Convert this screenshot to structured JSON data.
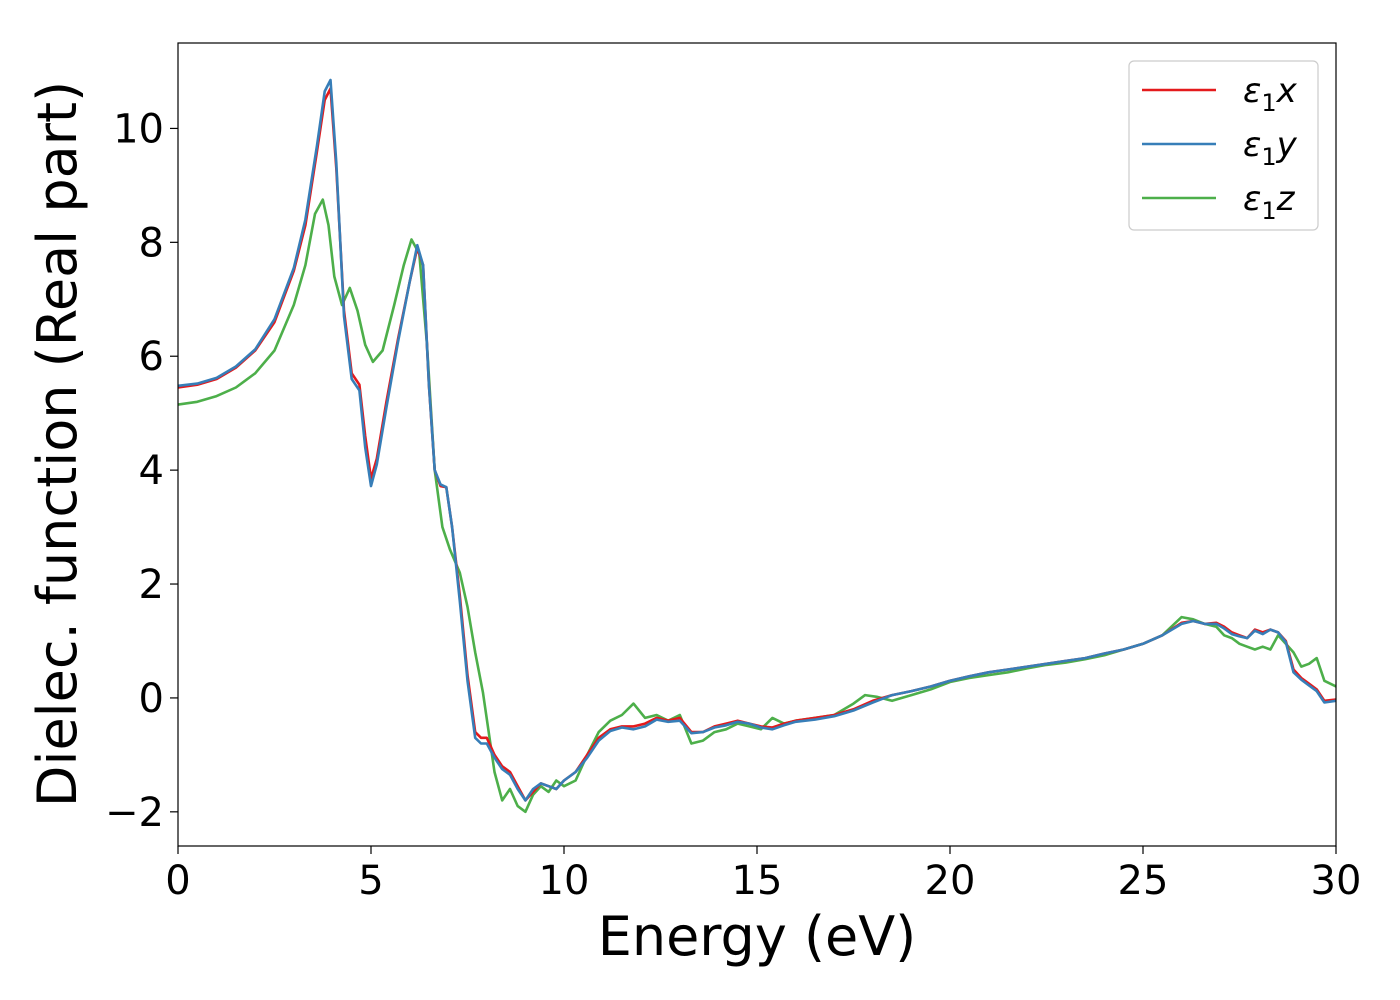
{
  "chart_data": {
    "type": "line",
    "title": "",
    "xlabel": "Energy (eV)",
    "ylabel": "Dielec. function (Real part)",
    "xlim": [
      0,
      30
    ],
    "ylim": [
      -2.6,
      11.5
    ],
    "xticks": [
      0,
      5,
      10,
      15,
      20,
      25,
      30
    ],
    "xtick_labels": [
      "0",
      "5",
      "10",
      "15",
      "20",
      "25",
      "30"
    ],
    "yticks": [
      -2,
      0,
      2,
      4,
      6,
      8,
      10
    ],
    "ytick_labels": [
      "−2",
      "0",
      "2",
      "4",
      "6",
      "8",
      "10"
    ],
    "grid": false,
    "legend_position": "top-right",
    "series": [
      {
        "name": "ε₁x",
        "name_base": "ε",
        "name_sub": "1",
        "name_suffix": "x",
        "color": "#e41a1c",
        "x": [
          0,
          0.5,
          1,
          1.5,
          2,
          2.5,
          3,
          3.3,
          3.6,
          3.8,
          3.95,
          4.1,
          4.3,
          4.5,
          4.7,
          4.85,
          5.0,
          5.15,
          5.4,
          5.7,
          6.0,
          6.2,
          6.35,
          6.5,
          6.65,
          6.8,
          6.95,
          7.1,
          7.3,
          7.5,
          7.7,
          7.85,
          8.0,
          8.2,
          8.4,
          8.6,
          8.8,
          9.0,
          9.2,
          9.4,
          9.6,
          9.8,
          10.0,
          10.3,
          10.6,
          10.9,
          11.2,
          11.5,
          11.8,
          12.1,
          12.4,
          12.7,
          13.0,
          13.3,
          13.6,
          13.9,
          14.2,
          14.5,
          14.8,
          15.1,
          15.4,
          15.7,
          16.0,
          16.5,
          17.0,
          17.5,
          18.0,
          18.5,
          19.0,
          19.5,
          20.0,
          20.5,
          21.0,
          21.5,
          22.0,
          22.5,
          23.0,
          23.5,
          24.0,
          24.5,
          25.0,
          25.5,
          26.0,
          26.3,
          26.6,
          26.9,
          27.1,
          27.3,
          27.5,
          27.7,
          27.9,
          28.1,
          28.3,
          28.5,
          28.7,
          28.9,
          29.1,
          29.3,
          29.5,
          29.7,
          30.0
        ],
        "y": [
          5.45,
          5.5,
          5.6,
          5.8,
          6.1,
          6.6,
          7.5,
          8.3,
          9.6,
          10.5,
          10.7,
          9.3,
          6.8,
          5.7,
          5.5,
          4.6,
          3.85,
          4.2,
          5.2,
          6.3,
          7.3,
          7.9,
          7.6,
          5.5,
          4.0,
          3.72,
          3.7,
          3.0,
          1.8,
          0.4,
          -0.6,
          -0.7,
          -0.7,
          -1.0,
          -1.2,
          -1.3,
          -1.55,
          -1.8,
          -1.65,
          -1.5,
          -1.55,
          -1.6,
          -1.45,
          -1.3,
          -1.0,
          -0.7,
          -0.55,
          -0.5,
          -0.5,
          -0.45,
          -0.35,
          -0.4,
          -0.35,
          -0.6,
          -0.6,
          -0.5,
          -0.45,
          -0.4,
          -0.45,
          -0.5,
          -0.52,
          -0.45,
          -0.4,
          -0.35,
          -0.3,
          -0.2,
          -0.05,
          0.05,
          0.12,
          0.2,
          0.3,
          0.38,
          0.45,
          0.5,
          0.55,
          0.6,
          0.65,
          0.7,
          0.78,
          0.85,
          0.95,
          1.1,
          1.32,
          1.35,
          1.3,
          1.32,
          1.25,
          1.15,
          1.1,
          1.05,
          1.2,
          1.15,
          1.2,
          1.15,
          1.0,
          0.5,
          0.35,
          0.25,
          0.15,
          -0.05,
          -0.03
        ]
      },
      {
        "name": "ε₁y",
        "name_base": "ε",
        "name_sub": "1",
        "name_suffix": "y",
        "color": "#377eb8",
        "x": [
          0,
          0.5,
          1,
          1.5,
          2,
          2.5,
          3,
          3.3,
          3.6,
          3.8,
          3.95,
          4.1,
          4.3,
          4.5,
          4.7,
          4.85,
          5.0,
          5.15,
          5.4,
          5.7,
          6.0,
          6.2,
          6.35,
          6.5,
          6.65,
          6.8,
          6.95,
          7.1,
          7.3,
          7.5,
          7.7,
          7.85,
          8.0,
          8.2,
          8.4,
          8.6,
          8.8,
          9.0,
          9.2,
          9.4,
          9.6,
          9.8,
          10.0,
          10.3,
          10.6,
          10.9,
          11.2,
          11.5,
          11.8,
          12.1,
          12.4,
          12.7,
          13.0,
          13.3,
          13.6,
          13.9,
          14.2,
          14.5,
          14.8,
          15.1,
          15.4,
          15.7,
          16.0,
          16.5,
          17.0,
          17.5,
          18.0,
          18.5,
          19.0,
          19.5,
          20.0,
          20.5,
          21.0,
          21.5,
          22.0,
          22.5,
          23.0,
          23.5,
          24.0,
          24.5,
          25.0,
          25.5,
          26.0,
          26.3,
          26.6,
          26.9,
          27.1,
          27.3,
          27.5,
          27.7,
          27.9,
          28.1,
          28.3,
          28.5,
          28.7,
          28.9,
          29.1,
          29.3,
          29.5,
          29.7,
          30.0
        ],
        "y": [
          5.48,
          5.52,
          5.62,
          5.82,
          6.12,
          6.65,
          7.55,
          8.4,
          9.7,
          10.65,
          10.85,
          9.4,
          6.7,
          5.6,
          5.4,
          4.4,
          3.72,
          4.1,
          5.1,
          6.25,
          7.3,
          7.95,
          7.6,
          5.5,
          4.0,
          3.75,
          3.7,
          3.0,
          1.7,
          0.3,
          -0.7,
          -0.8,
          -0.8,
          -1.05,
          -1.25,
          -1.35,
          -1.6,
          -1.8,
          -1.6,
          -1.5,
          -1.55,
          -1.6,
          -1.45,
          -1.3,
          -1.05,
          -0.75,
          -0.58,
          -0.52,
          -0.55,
          -0.5,
          -0.38,
          -0.42,
          -0.4,
          -0.62,
          -0.6,
          -0.52,
          -0.48,
          -0.42,
          -0.45,
          -0.52,
          -0.55,
          -0.48,
          -0.42,
          -0.38,
          -0.32,
          -0.22,
          -0.08,
          0.05,
          0.12,
          0.2,
          0.3,
          0.38,
          0.45,
          0.5,
          0.55,
          0.6,
          0.65,
          0.7,
          0.78,
          0.85,
          0.95,
          1.1,
          1.3,
          1.35,
          1.3,
          1.3,
          1.22,
          1.12,
          1.08,
          1.05,
          1.18,
          1.12,
          1.2,
          1.15,
          0.98,
          0.45,
          0.32,
          0.22,
          0.12,
          -0.08,
          -0.05
        ]
      },
      {
        "name": "ε₁z",
        "name_base": "ε",
        "name_sub": "1",
        "name_suffix": "z",
        "color": "#4daf4a",
        "x": [
          0,
          0.5,
          1,
          1.5,
          2,
          2.5,
          3,
          3.3,
          3.55,
          3.75,
          3.9,
          4.05,
          4.25,
          4.45,
          4.65,
          4.85,
          5.05,
          5.3,
          5.6,
          5.85,
          6.05,
          6.25,
          6.45,
          6.65,
          6.85,
          7.05,
          7.3,
          7.5,
          7.7,
          7.9,
          8.05,
          8.2,
          8.4,
          8.6,
          8.8,
          9.0,
          9.2,
          9.4,
          9.6,
          9.8,
          10.0,
          10.3,
          10.6,
          10.9,
          11.2,
          11.5,
          11.8,
          12.1,
          12.4,
          12.7,
          13.0,
          13.3,
          13.6,
          13.9,
          14.2,
          14.5,
          14.8,
          15.1,
          15.4,
          15.7,
          16.0,
          16.5,
          17.0,
          17.5,
          17.8,
          18.1,
          18.5,
          19.0,
          19.5,
          20.0,
          20.5,
          21.0,
          21.5,
          22.0,
          22.5,
          23.0,
          23.5,
          24.0,
          24.5,
          25.0,
          25.5,
          26.0,
          26.3,
          26.6,
          26.9,
          27.1,
          27.3,
          27.5,
          27.7,
          27.9,
          28.1,
          28.3,
          28.5,
          28.7,
          28.9,
          29.1,
          29.3,
          29.5,
          29.7,
          30.0
        ],
        "y": [
          5.15,
          5.2,
          5.3,
          5.45,
          5.7,
          6.1,
          6.9,
          7.6,
          8.5,
          8.75,
          8.3,
          7.4,
          6.9,
          7.2,
          6.8,
          6.2,
          5.9,
          6.1,
          6.9,
          7.6,
          8.05,
          7.8,
          6.2,
          4.0,
          3.0,
          2.6,
          2.2,
          1.6,
          0.8,
          0.1,
          -0.6,
          -1.3,
          -1.8,
          -1.6,
          -1.9,
          -2.0,
          -1.7,
          -1.55,
          -1.65,
          -1.45,
          -1.55,
          -1.45,
          -1.0,
          -0.6,
          -0.4,
          -0.3,
          -0.1,
          -0.35,
          -0.3,
          -0.4,
          -0.3,
          -0.8,
          -0.75,
          -0.6,
          -0.55,
          -0.45,
          -0.5,
          -0.55,
          -0.35,
          -0.45,
          -0.4,
          -0.35,
          -0.3,
          -0.1,
          0.05,
          0.02,
          -0.05,
          0.05,
          0.15,
          0.28,
          0.35,
          0.4,
          0.45,
          0.52,
          0.58,
          0.62,
          0.68,
          0.75,
          0.85,
          0.95,
          1.1,
          1.42,
          1.38,
          1.3,
          1.25,
          1.1,
          1.05,
          0.95,
          0.9,
          0.85,
          0.9,
          0.85,
          1.1,
          0.95,
          0.8,
          0.55,
          0.6,
          0.7,
          0.3,
          0.2
        ]
      }
    ]
  }
}
